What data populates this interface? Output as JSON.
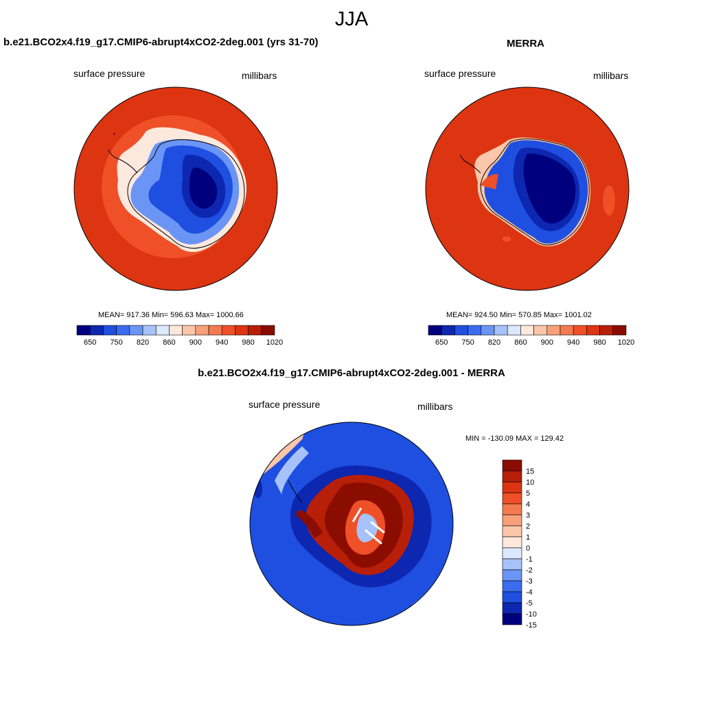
{
  "figure": {
    "title": "JJA"
  },
  "panels": [
    {
      "title": "b.e21.BCO2x4.f19_g17.CMIP6-abrupt4xCO2-2deg.001 (yrs 31-70)",
      "left_label": "surface pressure",
      "right_label": "millibars",
      "stats": "MEAN= 917.36  Min= 596.63  Max= 1000.66"
    },
    {
      "title": "MERRA",
      "left_label": "surface pressure",
      "right_label": "millibars",
      "stats": "MEAN= 924.50  Min= 570.85  Max= 1001.02"
    },
    {
      "title": "b.e21.BCO2x4.f19_g17.CMIP6-abrupt4xCO2-2deg.001 - MERRA",
      "left_label": "surface pressure",
      "right_label": "millibars",
      "stats": "MIN = -130.09 MAX = 129.42"
    }
  ],
  "colorbars": {
    "absolute": {
      "labels": [
        "650",
        "750",
        "820",
        "860",
        "900",
        "940",
        "980",
        "1020"
      ],
      "colors": [
        "#00007f",
        "#0d27b0",
        "#1f4fe0",
        "#3a6cf0",
        "#6b95f5",
        "#a7c2fa",
        "#dce8fd",
        "#fde8dd",
        "#fbc6aa",
        "#f8a07a",
        "#f47a50",
        "#ef5027",
        "#dd3411",
        "#b81f08",
        "#8b0d02"
      ]
    },
    "difference": {
      "labels": [
        "15",
        "10",
        "5",
        "4",
        "3",
        "2",
        "1",
        "0",
        "-1",
        "-2",
        "-3",
        "-4",
        "-5",
        "-10",
        "-15"
      ],
      "colors": [
        "#8b0d02",
        "#b81f08",
        "#dd3411",
        "#ef5027",
        "#f47a50",
        "#f8a07a",
        "#fbc6aa",
        "#fde8dd",
        "#dce8fd",
        "#a7c2fa",
        "#6b95f5",
        "#3a6cf0",
        "#1f4fe0",
        "#0d27b0",
        "#00007f"
      ]
    }
  },
  "chart_data": [
    {
      "type": "heatmap",
      "title": "b.e21.BCO2x4.f19_g17.CMIP6-abrupt4xCO2-2deg.001 (yrs 31-70)",
      "variable": "surface pressure",
      "units": "millibars",
      "projection": "south polar stereographic",
      "mean": 917.36,
      "min": 596.63,
      "max": 1000.66
    },
    {
      "type": "heatmap",
      "title": "MERRA",
      "variable": "surface pressure",
      "units": "millibars",
      "projection": "south polar stereographic",
      "mean": 924.5,
      "min": 570.85,
      "max": 1001.02
    },
    {
      "type": "heatmap",
      "title": "b.e21.BCO2x4.f19_g17.CMIP6-abrupt4xCO2-2deg.001 - MERRA",
      "variable": "surface pressure",
      "units": "millibars",
      "projection": "south polar stereographic",
      "min": -130.09,
      "max": 129.42
    }
  ]
}
